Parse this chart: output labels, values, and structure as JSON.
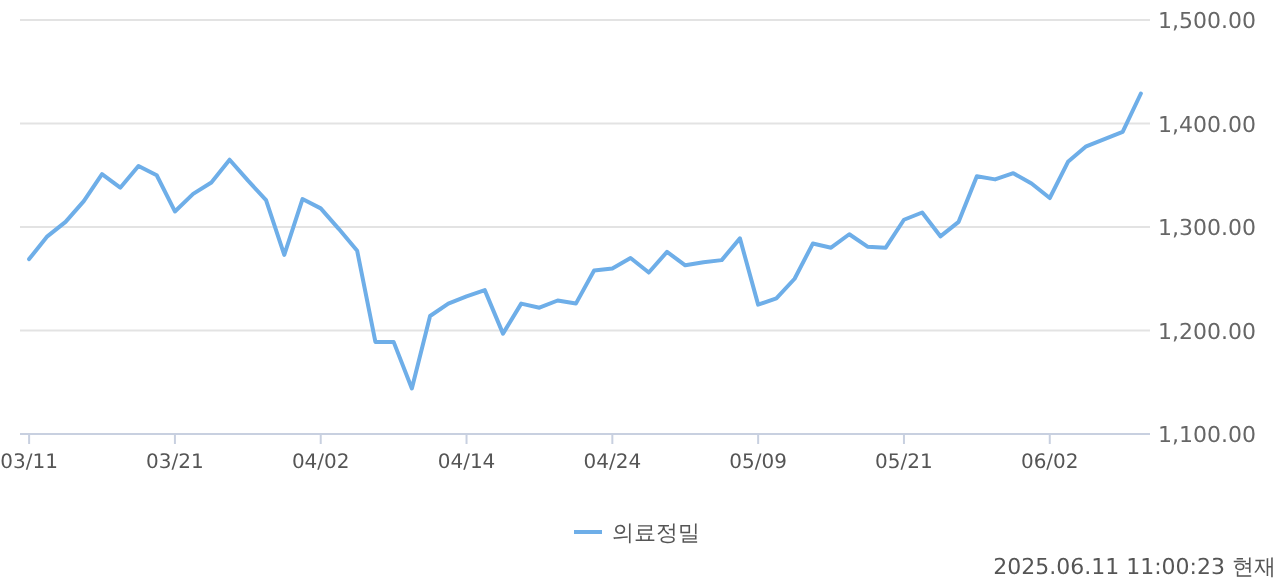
{
  "chart_data": {
    "type": "line",
    "categories": [
      "03/11",
      null,
      null,
      null,
      null,
      null,
      null,
      null,
      "03/21",
      null,
      null,
      null,
      null,
      null,
      null,
      null,
      "04/02",
      null,
      null,
      null,
      null,
      null,
      null,
      null,
      "04/14",
      null,
      null,
      null,
      null,
      null,
      null,
      null,
      "04/24",
      null,
      null,
      null,
      null,
      null,
      null,
      null,
      "05/09",
      null,
      null,
      null,
      null,
      null,
      null,
      null,
      "05/21",
      null,
      null,
      null,
      null,
      null,
      null,
      null,
      "06/02",
      null,
      null,
      null,
      null,
      null
    ],
    "series": [
      {
        "name": "의료정밀",
        "color": "#6eaee8",
        "values": [
          1269,
          1291,
          1305,
          1325,
          1351,
          1338,
          1359,
          1350,
          1315,
          1332,
          1343,
          1365,
          1345,
          1326,
          1273,
          1327,
          1318,
          1298,
          1277,
          1189,
          1189,
          1144,
          1214,
          1226,
          1233,
          1239,
          1197,
          1226,
          1222,
          1229,
          1226,
          1258,
          1260,
          1270,
          1256,
          1276,
          1263,
          1266,
          1268,
          1289,
          1225,
          1231,
          1250,
          1284,
          1280,
          1293,
          1281,
          1280,
          1307,
          1314,
          1291,
          1305,
          1349,
          1346,
          1352,
          1342,
          1328,
          1363,
          1378,
          1385,
          1392,
          1429
        ]
      }
    ],
    "ylim": [
      1100,
      1500
    ],
    "yticks": [
      {
        "value": 1100,
        "label": "1,100.00"
      },
      {
        "value": 1200,
        "label": "1,200.00"
      },
      {
        "value": 1300,
        "label": "1,300.00"
      },
      {
        "value": 1400,
        "label": "1,400.00"
      },
      {
        "value": 1500,
        "label": "1,500.00"
      }
    ],
    "grid": "y",
    "legend": "bottom",
    "annotations": [
      "2025.06.11 11:00:23 현재"
    ]
  }
}
